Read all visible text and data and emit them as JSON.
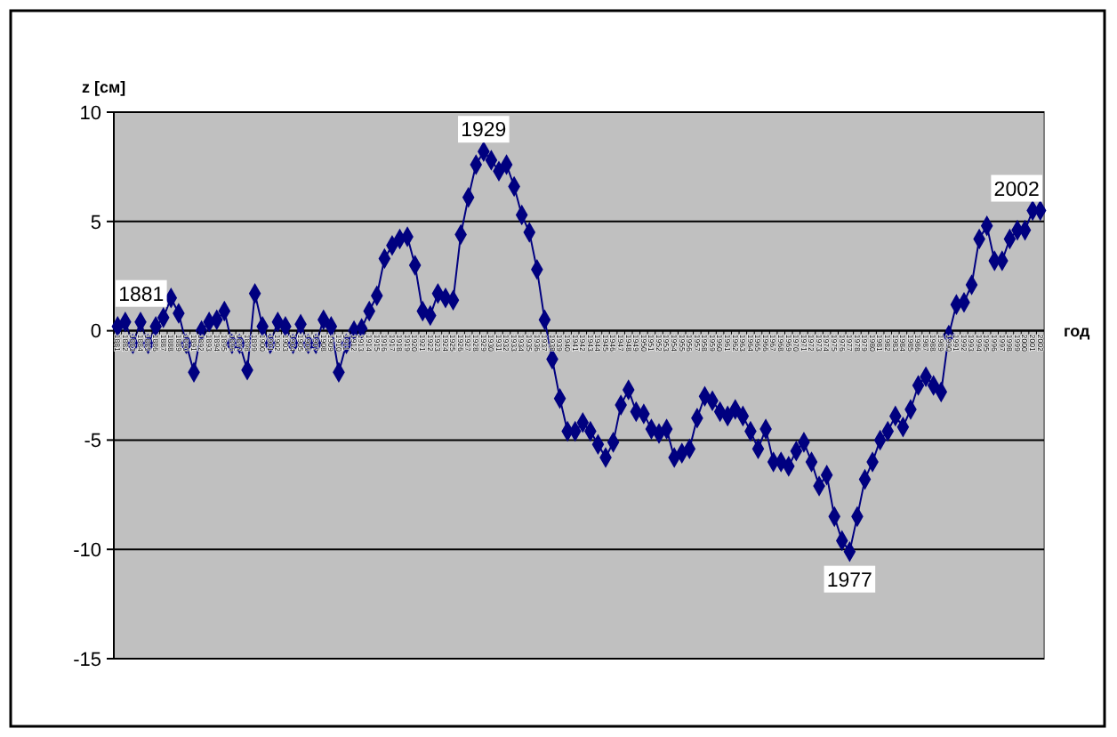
{
  "chart_data": {
    "type": "line",
    "xlabel": "год",
    "ylabel": "z [см]",
    "categories": [
      "1881",
      "1882",
      "1883",
      "1884",
      "1885",
      "1886",
      "1887",
      "1888",
      "1889",
      "1890",
      "1891",
      "1892",
      "1893",
      "1894",
      "1895",
      "1896",
      "1897",
      "1898",
      "1899",
      "1900",
      "1901",
      "1902",
      "1903",
      "1904",
      "1905",
      "1906",
      "1907",
      "1908",
      "1909",
      "1910",
      "1911",
      "1912",
      "1913",
      "1914",
      "1915",
      "1916",
      "1917",
      "1918",
      "1919",
      "1920",
      "1921",
      "1922",
      "1923",
      "1924",
      "1925",
      "1926",
      "1927",
      "1928",
      "1929",
      "1930",
      "1931",
      "1932",
      "1933",
      "1934",
      "1935",
      "1936",
      "1937",
      "1938",
      "1939",
      "1940",
      "1941",
      "1942",
      "1943",
      "1944",
      "1945",
      "1946",
      "1947",
      "1948",
      "1949",
      "1950",
      "1951",
      "1952",
      "1953",
      "1954",
      "1955",
      "1956",
      "1957",
      "1958",
      "1959",
      "1960",
      "1961",
      "1962",
      "1963",
      "1964",
      "1965",
      "1966",
      "1967",
      "1968",
      "1969",
      "1970",
      "1971",
      "1972",
      "1973",
      "1974",
      "1975",
      "1976",
      "1977",
      "1978",
      "1979",
      "1980",
      "1981",
      "1982",
      "1983",
      "1984",
      "1985",
      "1986",
      "1987",
      "1988",
      "1989",
      "1990",
      "1991",
      "1992",
      "1993",
      "1994",
      "1995",
      "1996",
      "1997",
      "1998",
      "1999",
      "2000",
      "2001",
      "2002"
    ],
    "series": [
      {
        "color": "#000080",
        "values": [
          0.2,
          0.4,
          -0.6,
          0.4,
          -0.6,
          0.2,
          0.6,
          1.5,
          0.8,
          -0.6,
          -1.9,
          0,
          0.4,
          0.5,
          0.9,
          -0.6,
          -0.6,
          -1.8,
          1.7,
          0.2,
          -0.6,
          0.4,
          0.2,
          -0.6,
          0.3,
          -0.6,
          -0.6,
          0.5,
          0.2,
          -1.9,
          -0.6,
          0,
          0.1,
          0.9,
          1.6,
          3.3,
          3.9,
          4.2,
          4.3,
          3.0,
          0.9,
          0.7,
          1.7,
          1.5,
          1.4,
          4.4,
          6.1,
          7.6,
          8.2,
          7.8,
          7.3,
          7.6,
          6.6,
          5.3,
          4.5,
          2.8,
          0.5,
          -1.3,
          -3.1,
          -4.6,
          -4.6,
          -4.2,
          -4.6,
          -5.2,
          -5.8,
          -5.1,
          -3.4,
          -2.7,
          -3.7,
          -3.8,
          -4.5,
          -4.7,
          -4.5,
          -5.8,
          -5.6,
          -5.4,
          -4.0,
          -3.0,
          -3.2,
          -3.7,
          -3.9,
          -3.6,
          -3.9,
          -4.6,
          -5.4,
          -4.5,
          -6.0,
          -6.0,
          -6.2,
          -5.5,
          -5.1,
          -6.0,
          -7.1,
          -6.6,
          -8.5,
          -9.6,
          -10.1,
          -8.5,
          -6.8,
          -6.0,
          -5.0,
          -4.6,
          -3.9,
          -4.4,
          -3.6,
          -2.5,
          -2.1,
          -2.5,
          -2.8,
          -0.2,
          1.2,
          1.3,
          2.1,
          4.2,
          4.8,
          3.2,
          3.2,
          4.2,
          4.6,
          4.6,
          5.5,
          5.5
        ]
      }
    ],
    "annotations": [
      {
        "text": "1881",
        "x": "1881",
        "y": 0.2
      },
      {
        "text": "1929",
        "x": "1929",
        "y": 8.2
      },
      {
        "text": "1977",
        "x": "1977",
        "y": -10.1
      },
      {
        "text": "2002",
        "x": "2002",
        "y": 5.5
      }
    ],
    "ylim": [
      -15,
      10
    ],
    "yticks": [
      -15,
      -10,
      -5,
      0,
      5,
      10
    ],
    "grid": "y",
    "marker": "diamond",
    "line_style": "solid"
  }
}
